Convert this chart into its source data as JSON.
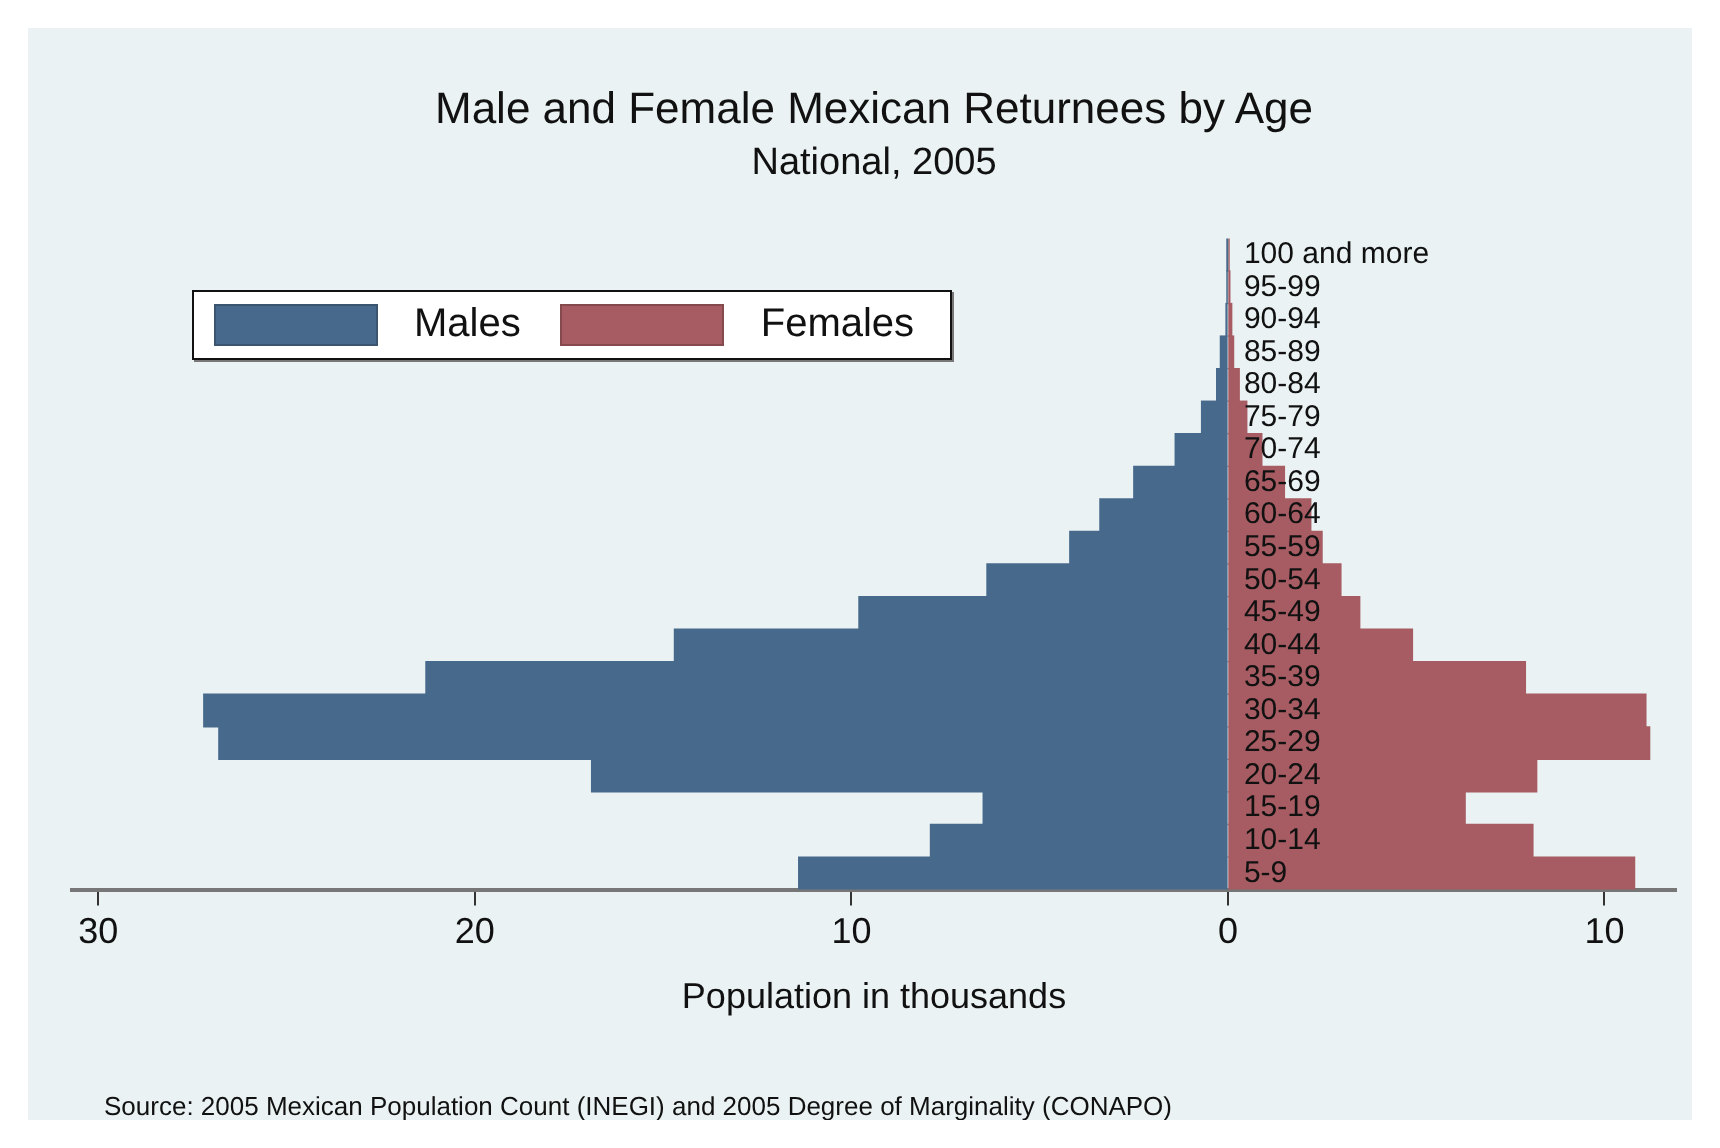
{
  "chart_data": {
    "type": "bar",
    "orientation": "horizontal",
    "stacked": true,
    "title": "Male and Female Mexican Returnees by Age",
    "subtitle": "National, 2005",
    "xlabel": "Population in thousands",
    "categories": [
      "100 and more",
      "95-99",
      "90-94",
      "85-89",
      "80-84",
      "75-79",
      "70-74",
      "65-69",
      "60-64",
      "55-59",
      "50-54",
      "45-49",
      "40-44",
      "35-39",
      "30-34",
      "25-29",
      "20-24",
      "15-19",
      "10-14",
      "5-9"
    ],
    "series": [
      {
        "name": "Males",
        "color": "#476a8c",
        "values": [
          -0.01,
          -0.02,
          -0.05,
          -0.2,
          -0.3,
          -0.7,
          -1.4,
          -2.5,
          -3.4,
          -4.2,
          -6.4,
          -9.8,
          -14.7,
          -21.3,
          -27.2,
          -26.8,
          -16.9,
          -6.5,
          -7.9,
          -11.4
        ]
      },
      {
        "name": "Females",
        "color": "#a65c62",
        "values": [
          0.03,
          0.05,
          0.1,
          0.15,
          0.3,
          0.5,
          0.9,
          1.5,
          2.2,
          2.5,
          3.0,
          3.5,
          4.9,
          7.9,
          11.1,
          11.2,
          8.2,
          6.3,
          8.1,
          10.8
        ]
      }
    ],
    "xlim": [
      -30.7,
      11.9
    ],
    "xticks": [
      {
        "value": -30,
        "label": "30"
      },
      {
        "value": -20,
        "label": "20"
      },
      {
        "value": -10,
        "label": "10"
      },
      0,
      10
    ],
    "grid": false,
    "legend": "top left",
    "annotations": [
      "Source: 2005 Mexican Population Count (INEGI) and 2005 Degree of Marginality (CONAPO)"
    ]
  }
}
